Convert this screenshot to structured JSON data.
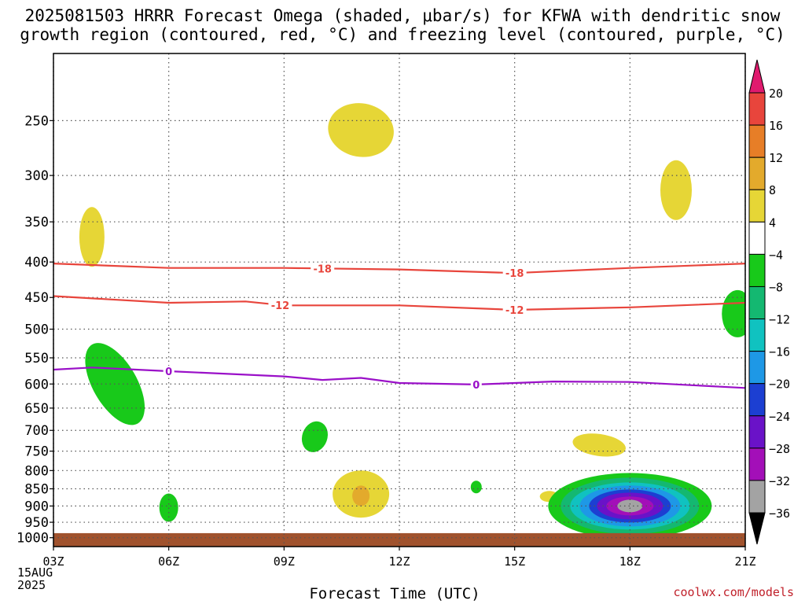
{
  "header": {
    "title_line1": "2025081503 HRRR Forecast Omega (shaded, μbar/s) for KFWA with dendritic snow",
    "title_line2": "growth region (contoured, red, °C) and freezing level (contoured, purple, °C)"
  },
  "footer": {
    "credit": "coolwx.com/models"
  },
  "chart_data": {
    "type": "heatmap",
    "title": "2025081503 HRRR Forecast Omega (shaded, μbar/s) for KFWA with dendritic snow growth region (contoured, red, °C) and freezing level (contoured, purple, °C)",
    "xlabel": "Forecast Time (UTC)",
    "ylabel": "",
    "x_range_hours": [
      3,
      21
    ],
    "x_ticks": [
      {
        "hour": 3,
        "label": "03Z"
      },
      {
        "hour": 6,
        "label": "06Z"
      },
      {
        "hour": 9,
        "label": "09Z"
      },
      {
        "hour": 12,
        "label": "12Z"
      },
      {
        "hour": 15,
        "label": "15Z"
      },
      {
        "hour": 18,
        "label": "18Z"
      },
      {
        "hour": 21,
        "label": "21Z"
      }
    ],
    "x_date_label": [
      "15AUG",
      "2025"
    ],
    "y_range_hpa": [
      200,
      1030
    ],
    "y_ticks": [
      250,
      300,
      350,
      400,
      450,
      500,
      550,
      600,
      650,
      700,
      750,
      800,
      850,
      900,
      950,
      1000
    ],
    "grid": true,
    "colorbar": {
      "levels": [
        "20",
        "16",
        "12",
        "8",
        "4",
        "−4",
        "−8",
        "−12",
        "−16",
        "−20",
        "−24",
        "−28",
        "−32",
        "−36"
      ],
      "colors": [
        "#e01a6e",
        "#e8453c",
        "#e77e27",
        "#e3aa2c",
        "#e6d636",
        "#ffffff",
        "#18c91a",
        "#14b871",
        "#10c2c0",
        "#1e98e6",
        "#1c3fd2",
        "#6a12c8",
        "#a30fb8",
        "#a3a3a3",
        "#000000"
      ],
      "placement": "right"
    },
    "omega_areas": [
      {
        "level": "4 to 8",
        "color": "#e6d636",
        "center_hour": 4.0,
        "center_hpa": 368
      },
      {
        "level": "4 to 8",
        "color": "#e6d636",
        "center_hour": 11.0,
        "center_hpa": 258
      },
      {
        "level": "4 to 8",
        "color": "#e6d636",
        "center_hour": 19.2,
        "center_hpa": 315
      },
      {
        "level": "4 to 8",
        "color": "#e6d636",
        "center_hour": 11.0,
        "center_hpa": 865
      },
      {
        "level": "8 to 12",
        "color": "#e3aa2c",
        "center_hour": 11.0,
        "center_hpa": 870
      },
      {
        "level": "4 to 8",
        "color": "#e6d636",
        "center_hour": 17.2,
        "center_hpa": 735
      },
      {
        "level": "4 to 8",
        "color": "#e6d636",
        "center_hour": 15.9,
        "center_hpa": 872
      },
      {
        "level": "-4 to -8",
        "color": "#18c91a",
        "center_hour": 4.6,
        "center_hpa": 600
      },
      {
        "level": "-4 to -8",
        "color": "#18c91a",
        "center_hour": 9.8,
        "center_hpa": 715
      },
      {
        "level": "-4 to -8",
        "color": "#18c91a",
        "center_hour": 6.0,
        "center_hpa": 905
      },
      {
        "level": "-4 to -8",
        "color": "#18c91a",
        "center_hour": 14.0,
        "center_hpa": 845
      },
      {
        "level": "-4 to -8",
        "color": "#18c91a",
        "center_hour": 20.8,
        "center_hpa": 475
      },
      {
        "level": "-4 to -36",
        "color": "#18c91a",
        "center_hour": 18.0,
        "center_hpa": 900,
        "min": -36
      }
    ],
    "contours": [
      {
        "name": "-18",
        "color": "#e8453c",
        "label": "-18",
        "points": [
          [
            3,
            402
          ],
          [
            6,
            408
          ],
          [
            9,
            408
          ],
          [
            12,
            410
          ],
          [
            15,
            415
          ],
          [
            18,
            408
          ],
          [
            21,
            402
          ]
        ],
        "label_hours": [
          10.0,
          15.0
        ]
      },
      {
        "name": "-12",
        "color": "#e8453c",
        "label": "-12",
        "points": [
          [
            3,
            448
          ],
          [
            6,
            458
          ],
          [
            8,
            456
          ],
          [
            9,
            462
          ],
          [
            12,
            462
          ],
          [
            15,
            469
          ],
          [
            18,
            465
          ],
          [
            21,
            458
          ]
        ],
        "label_hours": [
          8.9,
          15.0
        ]
      },
      {
        "name": "0",
        "color": "#9a10c8",
        "label": "0",
        "points": [
          [
            3,
            572
          ],
          [
            4,
            568
          ],
          [
            6,
            575
          ],
          [
            9,
            585
          ],
          [
            10,
            592
          ],
          [
            11,
            588
          ],
          [
            12,
            598
          ],
          [
            14,
            601
          ],
          [
            16,
            595
          ],
          [
            18,
            596
          ],
          [
            21,
            608
          ]
        ],
        "label_hours": [
          6.0,
          14.0
        ]
      }
    ]
  }
}
